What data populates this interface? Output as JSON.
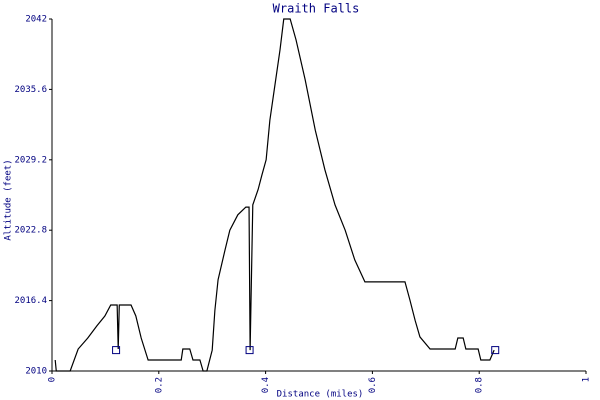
{
  "chart_data": {
    "type": "line",
    "title": "Wraith Falls",
    "x_label": "Distance (miles)",
    "y_label": "Altitude (feet)",
    "x": [
      0.006,
      0.008,
      0.034,
      0.049,
      0.067,
      0.084,
      0.099,
      0.11,
      0.122,
      0.124,
      0.126,
      0.148,
      0.157,
      0.167,
      0.18,
      0.242,
      0.245,
      0.258,
      0.264,
      0.277,
      0.283,
      0.29,
      0.3,
      0.305,
      0.311,
      0.324,
      0.333,
      0.348,
      0.363,
      0.369,
      0.371,
      0.376,
      0.386,
      0.393,
      0.401,
      0.408,
      0.416,
      0.427,
      0.434,
      0.446,
      0.457,
      0.474,
      0.493,
      0.511,
      0.53,
      0.549,
      0.567,
      0.586,
      0.661,
      0.67,
      0.68,
      0.689,
      0.708,
      0.755,
      0.76,
      0.77,
      0.775,
      0.798,
      0.803,
      0.82,
      0.828
    ],
    "values": [
      2011,
      2010,
      2010,
      2012,
      2013,
      2014.1,
      2015,
      2016,
      2016,
      2012,
      2016,
      2016,
      2015,
      2013,
      2011,
      2011,
      2012,
      2012,
      2011,
      2011,
      2010,
      2010,
      2011.9,
      2015.5,
      2018.3,
      2021,
      2022.8,
      2024.2,
      2024.9,
      2024.9,
      2011.9,
      2025.1,
      2026.5,
      2027.8,
      2029.2,
      2032.8,
      2035.5,
      2039.2,
      2042,
      2042,
      2040.1,
      2036.5,
      2031.9,
      2028.3,
      2025.1,
      2022.8,
      2020.1,
      2018.1,
      2018.1,
      2016.5,
      2014.6,
      2013.1,
      2012,
      2012,
      2013,
      2013,
      2012,
      2012,
      2011,
      2011,
      2011.9
    ],
    "color": "#000000",
    "markers": {
      "x": [
        0.12,
        0.37,
        0.83
      ],
      "values": [
        2011.9,
        2011.9,
        2011.9
      ],
      "color": "#000080"
    },
    "xlim": [
      0,
      1
    ],
    "xticks": [
      0,
      0.2,
      0.4,
      0.6,
      0.8,
      1
    ],
    "ylim": [
      2010,
      2042
    ],
    "yticks": [
      2010,
      2016.4,
      2022.8,
      2029.2,
      2035.6,
      2042
    ]
  }
}
